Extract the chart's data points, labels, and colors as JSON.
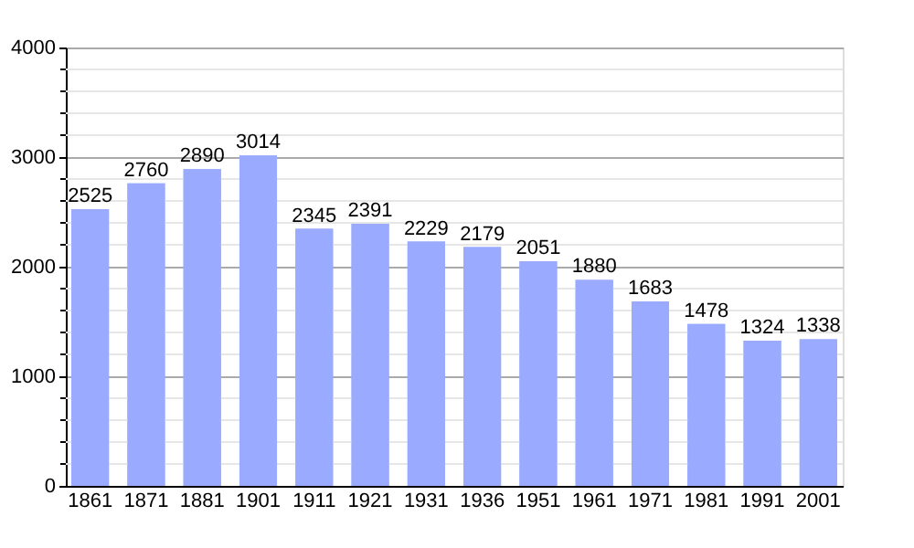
{
  "chart_data": {
    "type": "bar",
    "categories": [
      "1861",
      "1871",
      "1881",
      "1901",
      "1911",
      "1921",
      "1931",
      "1936",
      "1951",
      "1961",
      "1971",
      "1981",
      "1991",
      "2001"
    ],
    "values": [
      2525,
      2760,
      2890,
      3014,
      2345,
      2391,
      2229,
      2179,
      2051,
      1880,
      1683,
      1478,
      1324,
      1338
    ],
    "color": "#99aaff",
    "data_labels": true,
    "grid": "y",
    "ylim": [
      0,
      4000
    ],
    "yticks": [
      0,
      {
        "value": 200,
        "label": null
      },
      {
        "value": 400,
        "label": null
      },
      {
        "value": 600,
        "label": null
      },
      {
        "value": 800,
        "label": null
      },
      1000,
      {
        "value": 1200,
        "label": null
      },
      {
        "value": 1400,
        "label": null
      },
      {
        "value": 1600,
        "label": null
      },
      {
        "value": 1800,
        "label": null
      },
      2000,
      {
        "value": 2200,
        "label": null
      },
      {
        "value": 2400,
        "label": null
      },
      {
        "value": 2600,
        "label": null
      },
      {
        "value": 2800,
        "label": null
      },
      3000,
      {
        "value": 3200,
        "label": null
      },
      {
        "value": 3400,
        "label": null
      },
      {
        "value": 3600,
        "label": null
      },
      {
        "value": 3800,
        "label": null
      },
      4000
    ]
  }
}
